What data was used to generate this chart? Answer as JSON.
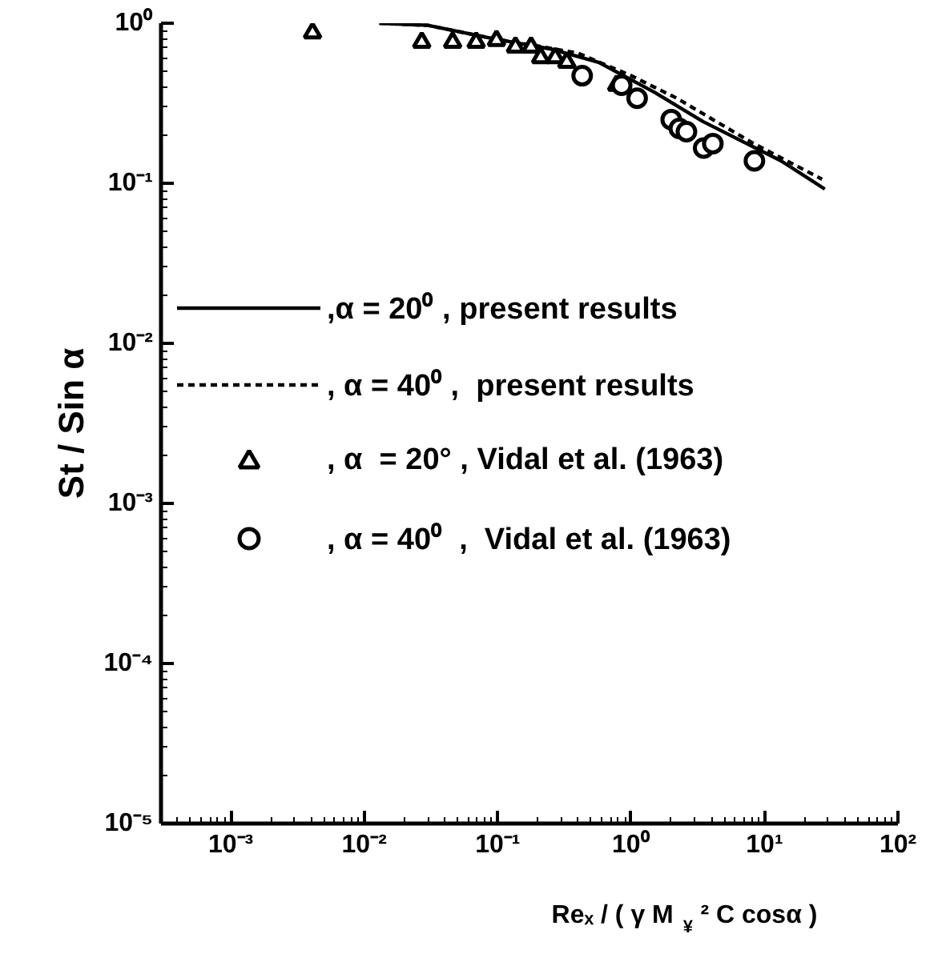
{
  "chart_data": {
    "type": "line",
    "xlabel": "Reₓ / ( γ M$_{¥}$² C cosα )",
    "ylabel": "St / Sin α",
    "log": "xy",
    "xlim": [
      0.0003,
      100
    ],
    "ylim": [
      1e-05,
      1
    ],
    "xticks": [
      {
        "value": 0.001,
        "label": "10⁻³"
      },
      {
        "value": 0.01,
        "label": "10⁻²"
      },
      {
        "value": 0.1,
        "label": "10⁻¹"
      },
      {
        "value": 1,
        "label": "10⁰"
      },
      {
        "value": 10,
        "label": "10¹"
      },
      {
        "value": 100,
        "label": "10²"
      }
    ],
    "yticks": [
      {
        "value": 1e-05,
        "label": "10⁻⁵"
      },
      {
        "value": 0.0001,
        "label": "10⁻⁴"
      },
      {
        "value": 0.001,
        "label": "10⁻³"
      },
      {
        "value": 0.01,
        "label": "10⁻²"
      },
      {
        "value": 0.1,
        "label": "10⁻¹"
      },
      {
        "value": 1,
        "label": "10⁰"
      }
    ],
    "grid": false,
    "legend": "left",
    "series": [
      {
        "name": ",α = 20⁰ , present results",
        "line_style": "solid",
        "color": "#000000",
        "x": [
          0.013,
          0.03,
          0.093,
          0.25,
          0.57,
          1.5,
          3.46,
          13.3,
          28.3
        ],
        "values": [
          1.0,
          0.97,
          0.8,
          0.69,
          0.57,
          0.37,
          0.243,
          0.138,
          0.092
        ]
      },
      {
        "name": ", α = 40⁰ ,  present results",
        "line_style": "dashed",
        "color": "#000000",
        "x": [
          0.013,
          0.03,
          0.093,
          0.2,
          0.4,
          1.0,
          2.2,
          8.0,
          27
        ],
        "values": [
          1.0,
          0.97,
          0.8,
          0.72,
          0.65,
          0.47,
          0.34,
          0.18,
          0.106
        ]
      },
      {
        "name": ", α  = 20° , Vidal et al. (1963)",
        "type": "scatter",
        "marker": "triangle",
        "color": "#000000",
        "x": [
          0.0041,
          0.027,
          0.046,
          0.069,
          0.098,
          0.136,
          0.178,
          0.21,
          0.27,
          0.33,
          0.78
        ],
        "values": [
          0.87,
          0.76,
          0.76,
          0.76,
          0.78,
          0.71,
          0.71,
          0.61,
          0.61,
          0.57,
          0.41
        ]
      },
      {
        "name": ", α = 40⁰  ,  Vidal et al. (1963)",
        "type": "scatter",
        "marker": "circle",
        "color": "#000000",
        "x": [
          0.43,
          0.85,
          1.11,
          2.0,
          2.3,
          2.6,
          3.5,
          4.1,
          8.4
        ],
        "values": [
          0.47,
          0.41,
          0.34,
          0.25,
          0.22,
          0.21,
          0.166,
          0.177,
          0.138
        ]
      }
    ]
  }
}
